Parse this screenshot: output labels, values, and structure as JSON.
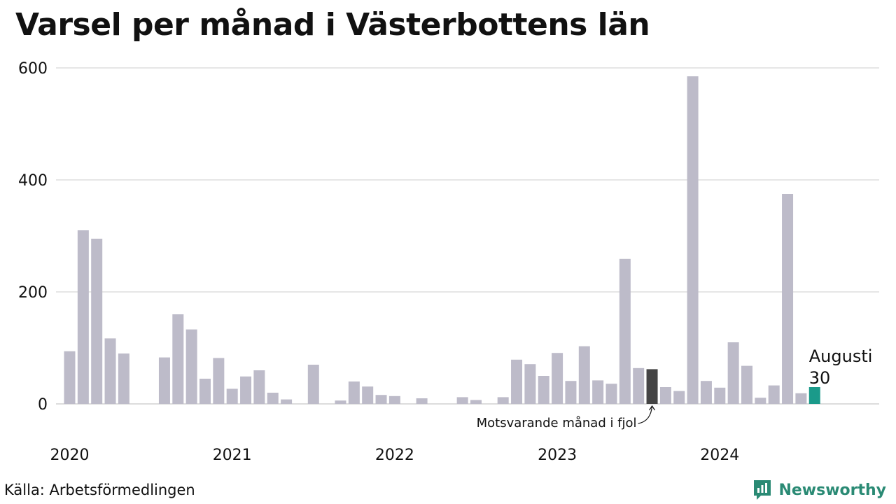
{
  "title": "Varsel per månad i Västerbottens län",
  "source": "Källa: Arbetsförmedlingen",
  "brand": {
    "name": "Newsworthy",
    "icon": "newsworthy-logo-icon"
  },
  "colors": {
    "bar": "#bdbbc9",
    "highlight": "#444444",
    "current": "#1a9a8a",
    "grid": "#dddddd",
    "brand": "#2a8a74"
  },
  "chart_data": {
    "type": "bar",
    "title": "Varsel per månad i Västerbottens län",
    "xlabel": "",
    "ylabel": "",
    "ylim": [
      0,
      600
    ],
    "yticks": [
      0,
      200,
      400,
      600
    ],
    "grid": true,
    "x_tick_labels": [
      "2020",
      "2021",
      "2022",
      "2023",
      "2024"
    ],
    "categories": [
      "2020-01",
      "2020-02",
      "2020-03",
      "2020-04",
      "2020-05",
      "2020-06",
      "2020-07",
      "2020-08",
      "2020-09",
      "2020-10",
      "2020-11",
      "2020-12",
      "2021-01",
      "2021-02",
      "2021-03",
      "2021-04",
      "2021-05",
      "2021-06",
      "2021-07",
      "2021-08",
      "2021-09",
      "2021-10",
      "2021-11",
      "2021-12",
      "2022-01",
      "2022-02",
      "2022-03",
      "2022-04",
      "2022-05",
      "2022-06",
      "2022-07",
      "2022-08",
      "2022-09",
      "2022-10",
      "2022-11",
      "2022-12",
      "2023-01",
      "2023-02",
      "2023-03",
      "2023-04",
      "2023-05",
      "2023-06",
      "2023-07",
      "2023-08",
      "2023-09",
      "2023-10",
      "2023-11",
      "2023-12",
      "2024-01",
      "2024-02",
      "2024-03",
      "2024-04",
      "2024-05",
      "2024-06",
      "2024-07",
      "2024-08"
    ],
    "values": [
      94,
      310,
      295,
      117,
      90,
      0,
      0,
      83,
      160,
      133,
      45,
      82,
      27,
      49,
      60,
      20,
      8,
      0,
      70,
      0,
      6,
      40,
      31,
      16,
      14,
      0,
      10,
      0,
      0,
      12,
      7,
      0,
      12,
      79,
      71,
      50,
      91,
      41,
      103,
      42,
      36,
      259,
      64,
      62,
      30,
      23,
      585,
      41,
      29,
      110,
      68,
      11,
      33,
      375,
      19,
      30
    ],
    "highlight_index": 43,
    "current_index": 55,
    "annotations": {
      "highlight_label": "Motsvarande månad i fjol",
      "current_month": "Augusti",
      "current_value": "30"
    }
  }
}
